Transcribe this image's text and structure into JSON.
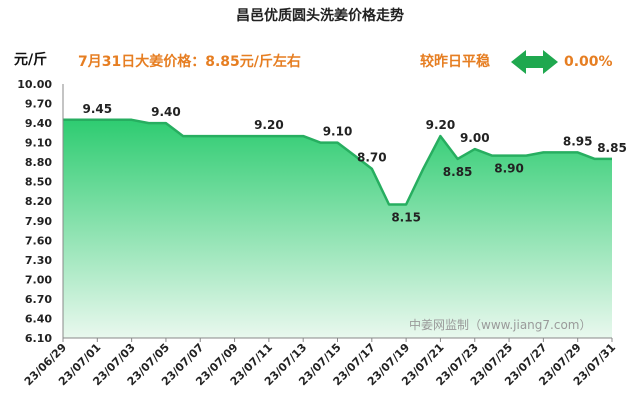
{
  "chart_data": {
    "type": "area",
    "title": "昌邑优质圆头洗姜价格走势",
    "ylabel": "元/斤",
    "note": "7月31日大姜价格：8.85元/斤左右",
    "trend_label": "较昨日平稳",
    "change_pct": "0.00%",
    "watermark": "中姜网监制（www.jiang7.com）",
    "ylim": [
      6.1,
      10.0
    ],
    "yticks": [
      "10.00",
      "9.70",
      "9.40",
      "9.10",
      "8.80",
      "8.50",
      "8.20",
      "7.90",
      "7.60",
      "7.30",
      "7.00",
      "6.70",
      "6.40",
      "6.10"
    ],
    "x_tick_labels": [
      "23/06/29",
      "23/07/01",
      "23/07/03",
      "23/07/05",
      "23/07/07",
      "23/07/09",
      "23/07/11",
      "23/07/13",
      "23/07/15",
      "23/07/17",
      "23/07/19",
      "23/07/21",
      "23/07/23",
      "23/07/25",
      "23/07/27",
      "23/07/29",
      "23/07/31"
    ],
    "x": [
      "23/06/29",
      "23/06/30",
      "23/07/01",
      "23/07/02",
      "23/07/03",
      "23/07/04",
      "23/07/05",
      "23/07/06",
      "23/07/07",
      "23/07/08",
      "23/07/09",
      "23/07/10",
      "23/07/11",
      "23/07/12",
      "23/07/13",
      "23/07/14",
      "23/07/15",
      "23/07/16",
      "23/07/17",
      "23/07/18",
      "23/07/19",
      "23/07/20",
      "23/07/21",
      "23/07/22",
      "23/07/23",
      "23/07/24",
      "23/07/25",
      "23/07/26",
      "23/07/27",
      "23/07/28",
      "23/07/29",
      "23/07/30",
      "23/07/31"
    ],
    "values": [
      9.45,
      9.45,
      9.45,
      9.45,
      9.45,
      9.4,
      9.4,
      9.2,
      9.2,
      9.2,
      9.2,
      9.2,
      9.2,
      9.2,
      9.2,
      9.1,
      9.1,
      8.9,
      8.7,
      8.15,
      8.15,
      8.7,
      9.2,
      8.85,
      9.0,
      8.9,
      8.9,
      8.9,
      8.95,
      8.95,
      8.95,
      8.85,
      8.85
    ],
    "data_labels": [
      {
        "date": "23/07/01",
        "text": "9.45",
        "pos": "above"
      },
      {
        "date": "23/07/05",
        "text": "9.40",
        "pos": "above"
      },
      {
        "date": "23/07/11",
        "text": "9.20",
        "pos": "above"
      },
      {
        "date": "23/07/15",
        "text": "9.10",
        "pos": "above"
      },
      {
        "date": "23/07/17",
        "text": "8.70",
        "pos": "above"
      },
      {
        "date": "23/07/19",
        "text": "8.15",
        "pos": "below"
      },
      {
        "date": "23/07/21",
        "text": "9.20",
        "pos": "above"
      },
      {
        "date": "23/07/22",
        "text": "8.85",
        "pos": "below"
      },
      {
        "date": "23/07/23",
        "text": "9.00",
        "pos": "above"
      },
      {
        "date": "23/07/25",
        "text": "8.90",
        "pos": "below"
      },
      {
        "date": "23/07/29",
        "text": "8.95",
        "pos": "above"
      },
      {
        "date": "23/07/31",
        "text": "8.85",
        "pos": "above"
      }
    ],
    "colors": {
      "line": "#27ae60",
      "fill_top": "#2ecc71",
      "fill_bottom": "#e9f8ee",
      "note": "#e67e22",
      "arrow": "#1fa84f"
    },
    "grid": false
  }
}
